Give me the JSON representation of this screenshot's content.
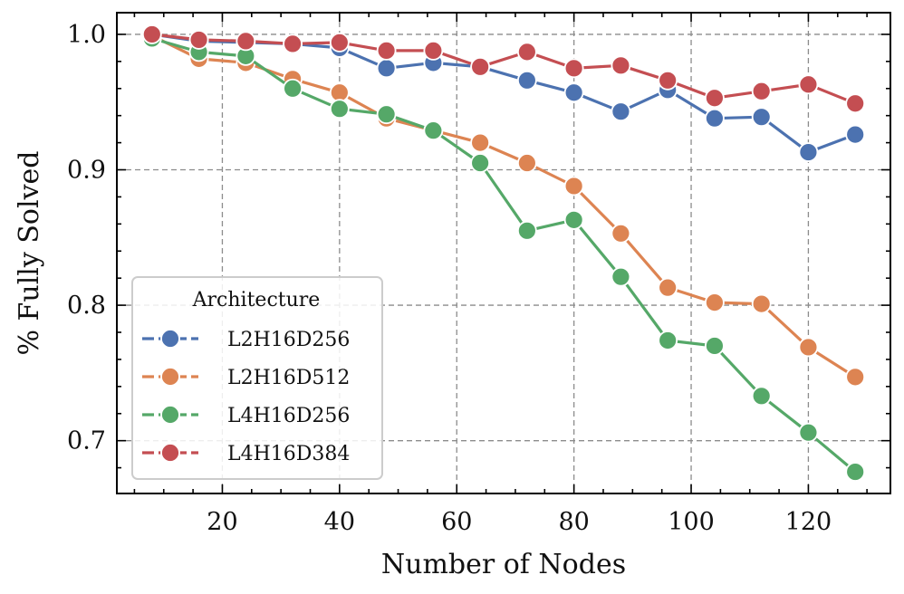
{
  "chart_data": {
    "type": "line",
    "title": "",
    "xlabel": "Number of Nodes",
    "ylabel": "% Fully Solved",
    "xlim": [
      2,
      134
    ],
    "ylim": [
      0.661,
      1.016
    ],
    "xticks": [
      20,
      40,
      60,
      80,
      100,
      120
    ],
    "yticks": [
      0.7,
      0.8,
      0.9,
      1.0
    ],
    "xtick_labels": [
      "20",
      "40",
      "60",
      "80",
      "100",
      "120"
    ],
    "ytick_labels": [
      "0.7",
      "0.8",
      "0.9",
      "1.0"
    ],
    "grid": true,
    "legend": {
      "title": "Architecture",
      "position": "lower-left"
    },
    "x": [
      8,
      16,
      24,
      32,
      40,
      48,
      56,
      64,
      72,
      80,
      88,
      96,
      104,
      112,
      120,
      128
    ],
    "series": [
      {
        "name": "L2H16D256",
        "color": "#4c72b0",
        "values": [
          1.0,
          0.995,
          0.994,
          0.993,
          0.99,
          0.975,
          0.979,
          0.976,
          0.966,
          0.957,
          0.943,
          0.959,
          0.938,
          0.939,
          0.913,
          0.926
        ]
      },
      {
        "name": "L2H16D512",
        "color": "#dd8452",
        "values": [
          0.999,
          0.982,
          0.979,
          0.967,
          0.957,
          0.938,
          0.929,
          0.92,
          0.905,
          0.888,
          0.853,
          0.813,
          0.802,
          0.801,
          0.769,
          0.747
        ]
      },
      {
        "name": "L4H16D256",
        "color": "#55a868",
        "values": [
          0.997,
          0.987,
          0.984,
          0.96,
          0.945,
          0.941,
          0.929,
          0.905,
          0.855,
          0.863,
          0.821,
          0.774,
          0.77,
          0.733,
          0.706,
          0.677
        ]
      },
      {
        "name": "L4H16D384",
        "color": "#c44e52",
        "values": [
          1.0,
          0.996,
          0.995,
          0.993,
          0.994,
          0.988,
          0.988,
          0.976,
          0.987,
          0.975,
          0.977,
          0.966,
          0.953,
          0.958,
          0.963,
          0.949
        ]
      }
    ]
  }
}
